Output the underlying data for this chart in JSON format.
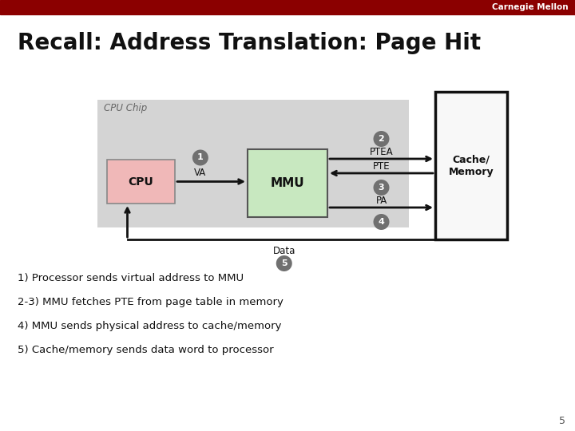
{
  "title": "Recall: Address Translation: Page Hit",
  "bg_color": "#ffffff",
  "header_color": "#8b0000",
  "header_text": "Carnegie Mellon",
  "page_number": "5",
  "cpu_chip_label": "CPU Chip",
  "cpu_label": "CPU",
  "mmu_label": "MMU",
  "cache_label": "Cache/\nMemory",
  "ptea_label": "PTEA",
  "pte_label": "PTE",
  "pa_label": "PA",
  "data_label": "Data",
  "bullet1": "1) Processor sends virtual address to MMU",
  "bullet2": "2-3) MMU fetches PTE from page table in memory",
  "bullet3": "4) MMU sends physical address to cache/memory",
  "bullet4": "5) Cache/memory sends data word to processor",
  "circle_color": "#707070",
  "circle_text_color": "#ffffff",
  "cpu_box_fill": "#f0b8b8",
  "cpu_box_edge": "#888888",
  "mmu_box_fill": "#c8e8c0",
  "mmu_box_edge": "#555555",
  "cache_box_fill": "#f8f8f8",
  "cache_box_edge": "#111111",
  "chip_bg_color": "#d4d4d4",
  "arrow_color": "#111111",
  "va_label": "VA"
}
